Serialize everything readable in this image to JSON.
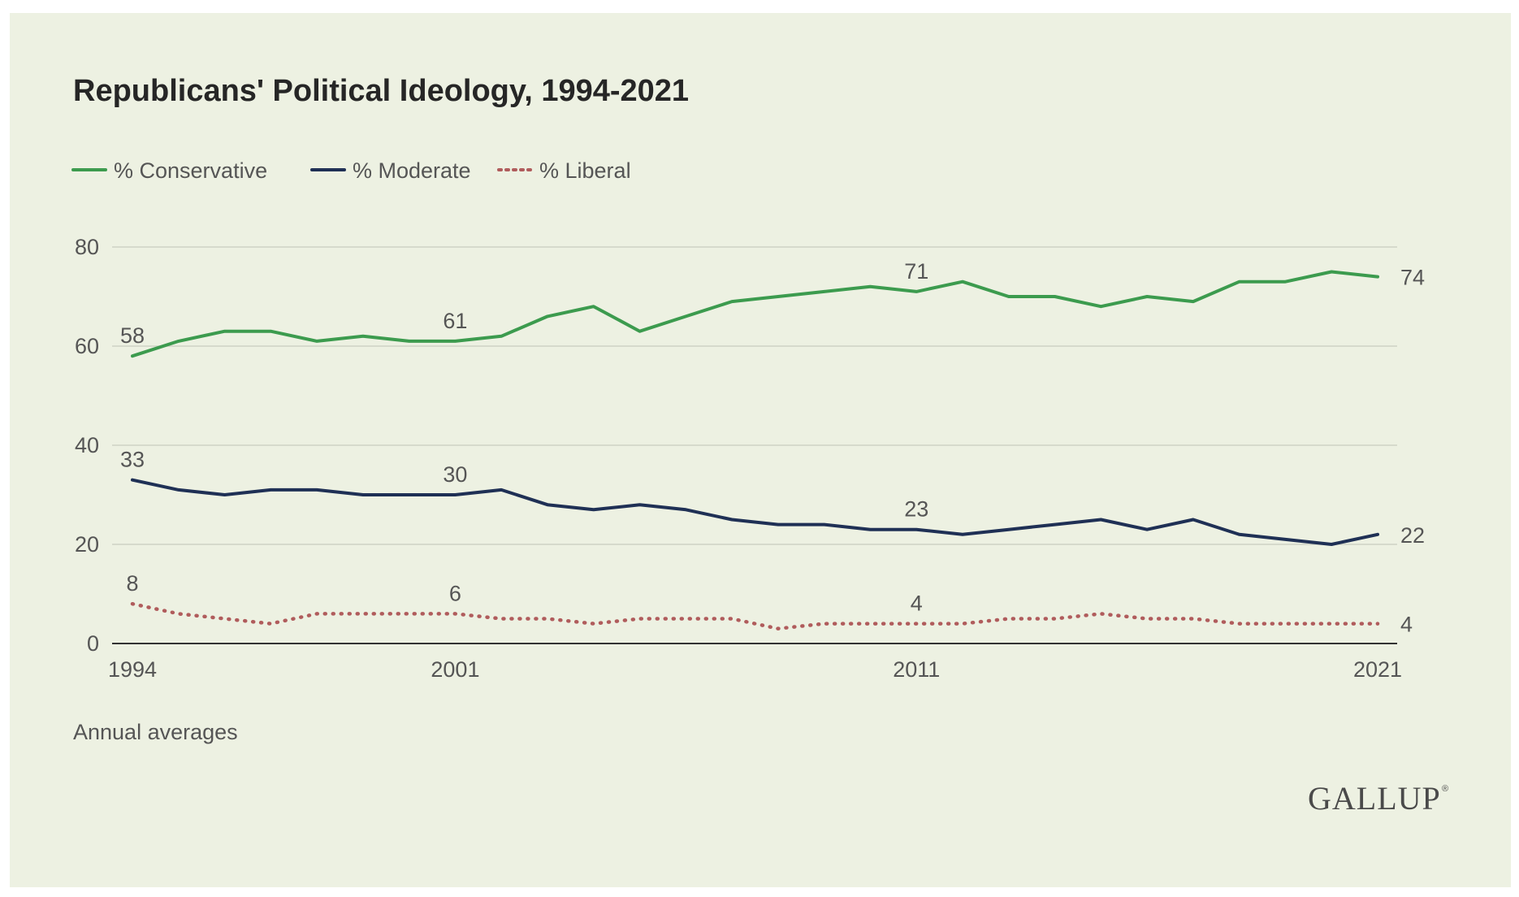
{
  "chart_data": {
    "type": "line",
    "title": "Republicans' Political Ideology, 1994-2021",
    "note": "Annual averages",
    "brand": "GALLUP",
    "x": [
      1994,
      1995,
      1996,
      1997,
      1998,
      1999,
      2000,
      2001,
      2002,
      2003,
      2004,
      2005,
      2006,
      2007,
      2008,
      2009,
      2010,
      2011,
      2012,
      2013,
      2014,
      2015,
      2016,
      2017,
      2018,
      2019,
      2020,
      2021
    ],
    "x_ticks": [
      "1994",
      "2001",
      "2011",
      "2021"
    ],
    "y_ticks": [
      "0",
      "20",
      "40",
      "60",
      "80"
    ],
    "ylim": [
      0,
      80
    ],
    "grid": true,
    "legend_position": "top-left",
    "series": [
      {
        "name": "% Conservative",
        "color": "#3c9b4e",
        "style": "solid",
        "values": [
          58,
          61,
          63,
          63,
          61,
          62,
          61,
          61,
          62,
          66,
          68,
          63,
          66,
          69,
          70,
          71,
          72,
          71,
          73,
          70,
          70,
          68,
          70,
          69,
          73,
          73,
          75,
          74
        ],
        "labels": [
          {
            "i": 0,
            "text": "58"
          },
          {
            "i": 7,
            "text": "61"
          },
          {
            "i": 17,
            "text": "71"
          },
          {
            "i": 27,
            "text": "74",
            "pos": "end"
          }
        ]
      },
      {
        "name": "% Moderate",
        "color": "#1f3055",
        "style": "solid",
        "values": [
          33,
          31,
          30,
          31,
          31,
          30,
          30,
          30,
          31,
          28,
          27,
          28,
          27,
          25,
          24,
          24,
          23,
          23,
          22,
          23,
          24,
          25,
          23,
          25,
          22,
          21,
          20,
          22
        ],
        "labels": [
          {
            "i": 0,
            "text": "33"
          },
          {
            "i": 7,
            "text": "30"
          },
          {
            "i": 17,
            "text": "23"
          },
          {
            "i": 27,
            "text": "22",
            "pos": "end"
          }
        ]
      },
      {
        "name": "% Liberal",
        "color": "#b05c5c",
        "style": "dotted",
        "values": [
          8,
          6,
          5,
          4,
          6,
          6,
          6,
          6,
          5,
          5,
          4,
          5,
          5,
          5,
          3,
          4,
          4,
          4,
          4,
          5,
          5,
          6,
          5,
          5,
          4,
          4,
          4,
          4
        ],
        "labels": [
          {
            "i": 0,
            "text": "8"
          },
          {
            "i": 7,
            "text": "6"
          },
          {
            "i": 17,
            "text": "4"
          },
          {
            "i": 27,
            "text": "4",
            "pos": "end"
          }
        ]
      }
    ]
  }
}
